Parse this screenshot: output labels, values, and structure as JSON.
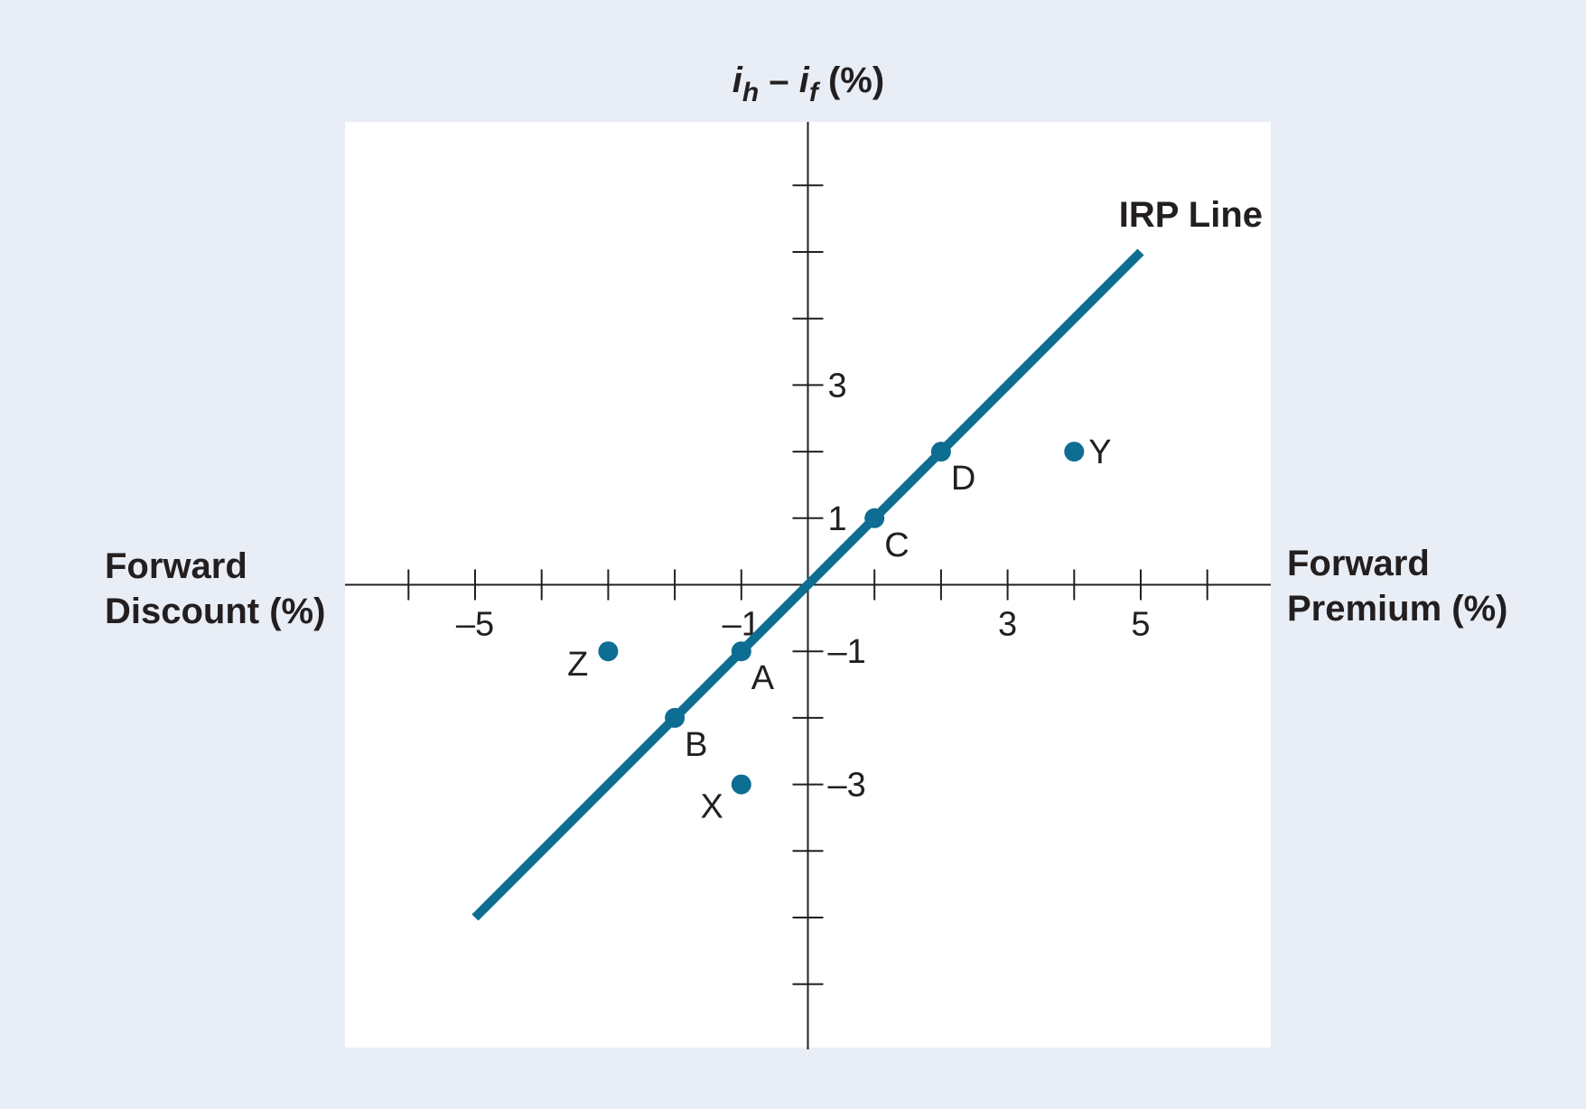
{
  "chart_data": {
    "type": "scatter",
    "title": "",
    "y_axis_title": {
      "main": "i",
      "sub_h": "h",
      "minus": " – ",
      "sub_f": "f",
      "unit": " (%)"
    },
    "left_label": [
      "Forward",
      "Discount (%)"
    ],
    "right_label": [
      "Forward",
      "Premium (%)"
    ],
    "xlim": [
      -7,
      7
    ],
    "ylim": [
      -7,
      7
    ],
    "x_ticks": [
      -6,
      -5,
      -4,
      -3,
      -2,
      -1,
      1,
      2,
      3,
      4,
      5,
      6
    ],
    "y_ticks": [
      -6,
      -5,
      -4,
      -3,
      -2,
      -1,
      1,
      2,
      3,
      4,
      5,
      6
    ],
    "x_tick_labels": [
      {
        "value": -5,
        "text": "–5"
      },
      {
        "value": -1,
        "text": "–1"
      },
      {
        "value": 3,
        "text": "3"
      },
      {
        "value": 5,
        "text": "5"
      }
    ],
    "y_tick_labels": [
      {
        "value": 3,
        "text": "3"
      },
      {
        "value": 1,
        "text": "1"
      },
      {
        "value": -1,
        "text": "–1"
      },
      {
        "value": -3,
        "text": "–3"
      }
    ],
    "line": {
      "name": "IRP Line",
      "from": [
        -5,
        -5
      ],
      "to": [
        5,
        5
      ]
    },
    "points": [
      {
        "label": "A",
        "x": -1,
        "y": -1,
        "label_pos": "below-right"
      },
      {
        "label": "B",
        "x": -2,
        "y": -2,
        "label_pos": "below-right"
      },
      {
        "label": "C",
        "x": 1,
        "y": 1,
        "label_pos": "below-right"
      },
      {
        "label": "D",
        "x": 2,
        "y": 2,
        "label_pos": "below-right"
      },
      {
        "label": "X",
        "x": -1,
        "y": -3,
        "label_pos": "below-left"
      },
      {
        "label": "Y",
        "x": 4,
        "y": 2,
        "label_pos": "right"
      },
      {
        "label": "Z",
        "x": -3,
        "y": -1,
        "label_pos": "left"
      }
    ],
    "colors": {
      "series": "#0e6d92",
      "axis": "#231f20",
      "panel": "#ffffff",
      "background": "#e9edf5"
    },
    "grid": false
  }
}
